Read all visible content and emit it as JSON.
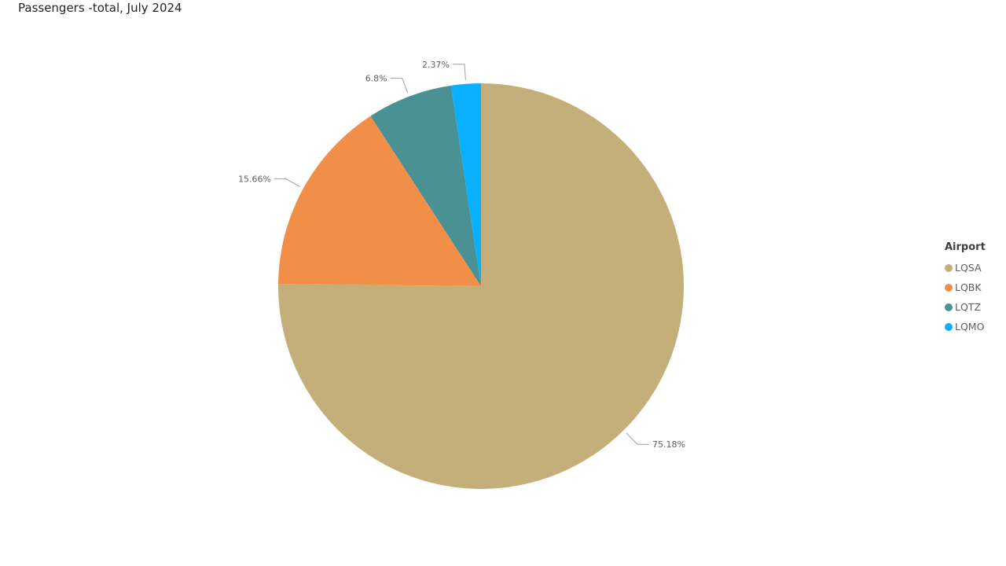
{
  "chart_data": {
    "type": "pie",
    "title": "Passengers -total, July 2024",
    "legend_title": "Airport",
    "legend_position": "right",
    "categories": [
      "LQSA",
      "LQBK",
      "LQTZ",
      "LQMO"
    ],
    "values": [
      75.18,
      15.66,
      6.8,
      2.37
    ],
    "data_labels": [
      "75.18%",
      "15.66%",
      "6.8%",
      "2.37%"
    ],
    "colors": [
      "#C4AF7B",
      "#F18F49",
      "#4A9193",
      "#0AAFFF"
    ]
  }
}
